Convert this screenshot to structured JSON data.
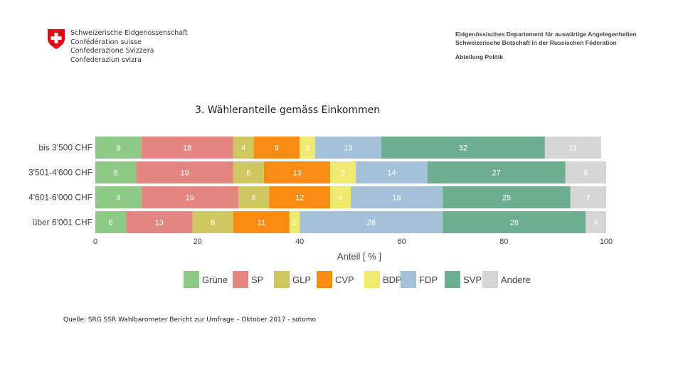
{
  "header": {
    "confed_lines": [
      "Schweizerische Eidgenossenschaft",
      "Confédération suisse",
      "Confederazione Svizzera",
      "Confederaziun svizra"
    ],
    "dept_line1": "Eidgenössisches Departement für auswärtige Angelegenheiten",
    "dept_line2": "Schweizerische Botschaft in der Russischen Föderation",
    "dept_line3": "Abteilung Politik"
  },
  "slide_title": "3. Wähleranteile gemäss Einkommen",
  "source": "Quelle: SRG SSR Wahlbarometer Bericht zur Umfrage – Oktober 2017 - sotomo",
  "chart_data": {
    "type": "bar",
    "orientation": "horizontal",
    "stacked": true,
    "categories": [
      "bis 3'500 CHF",
      "3'501-4'600 CHF",
      "4'601-6'000 CHF",
      "über 6'001 CHF"
    ],
    "series": [
      {
        "name": "Grüne",
        "color": "#8dca85",
        "values": [
          9,
          8,
          9,
          6
        ]
      },
      {
        "name": "SP",
        "color": "#e58582",
        "values": [
          18,
          19,
          19,
          13
        ]
      },
      {
        "name": "GLP",
        "color": "#cfc75f",
        "values": [
          4,
          6,
          6,
          8
        ]
      },
      {
        "name": "CVP",
        "color": "#fb8c12",
        "values": [
          9,
          13,
          12,
          11
        ]
      },
      {
        "name": "BDP",
        "color": "#efe96f",
        "values": [
          3,
          5,
          4,
          2
        ]
      },
      {
        "name": "FDP",
        "color": "#a4c1da",
        "values": [
          13,
          14,
          18,
          28
        ]
      },
      {
        "name": "SVP",
        "color": "#6eae90",
        "values": [
          32,
          27,
          25,
          28
        ]
      },
      {
        "name": "Andere",
        "color": "#d6d6d6",
        "values": [
          11,
          8,
          7,
          4
        ]
      }
    ],
    "xlabel": "Anteil [ % ]",
    "xlim": [
      0,
      100
    ],
    "xticks": [
      "0",
      "20",
      "40",
      "60",
      "80",
      "100"
    ],
    "legend_position": "bottom",
    "grid": false
  }
}
